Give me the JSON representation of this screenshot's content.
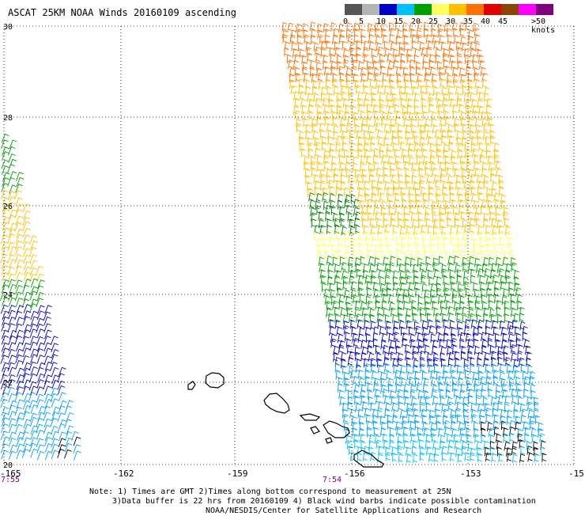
{
  "title": "ASCAT 25KM NOAA Winds 20160109 ascending",
  "legend": {
    "unit_label": ">50 knots",
    "labels": [
      "0",
      "5",
      "10",
      "15",
      "20",
      "25",
      "30",
      "35",
      "40",
      "45"
    ],
    "colors": [
      "#555555",
      "#b4b4b4",
      "#0000c8",
      "#00c0ff",
      "#00a000",
      "#ffff64",
      "#ffc000",
      "#ff7000",
      "#e00000",
      "#8b4500",
      "#ff00ff",
      "#800080"
    ]
  },
  "map": {
    "lat_labels": [
      "30",
      "28",
      "26",
      "24",
      "22",
      "20"
    ],
    "lon_labels": [
      "-165",
      "-162",
      "-159",
      "-156",
      "-153",
      "-15"
    ],
    "time_labels": [
      "7:55",
      "7:54"
    ]
  },
  "notes": {
    "line1": "Note: 1) Times are GMT 2)Times along bottom correspond to measurement at 25N",
    "line2": "3)Data buffer is 22 hrs from 20160109 4) Black wind barbs indicate possible contamination",
    "line3": "NOAA/NESDIS/Center for Satellite Applications and Research"
  }
}
